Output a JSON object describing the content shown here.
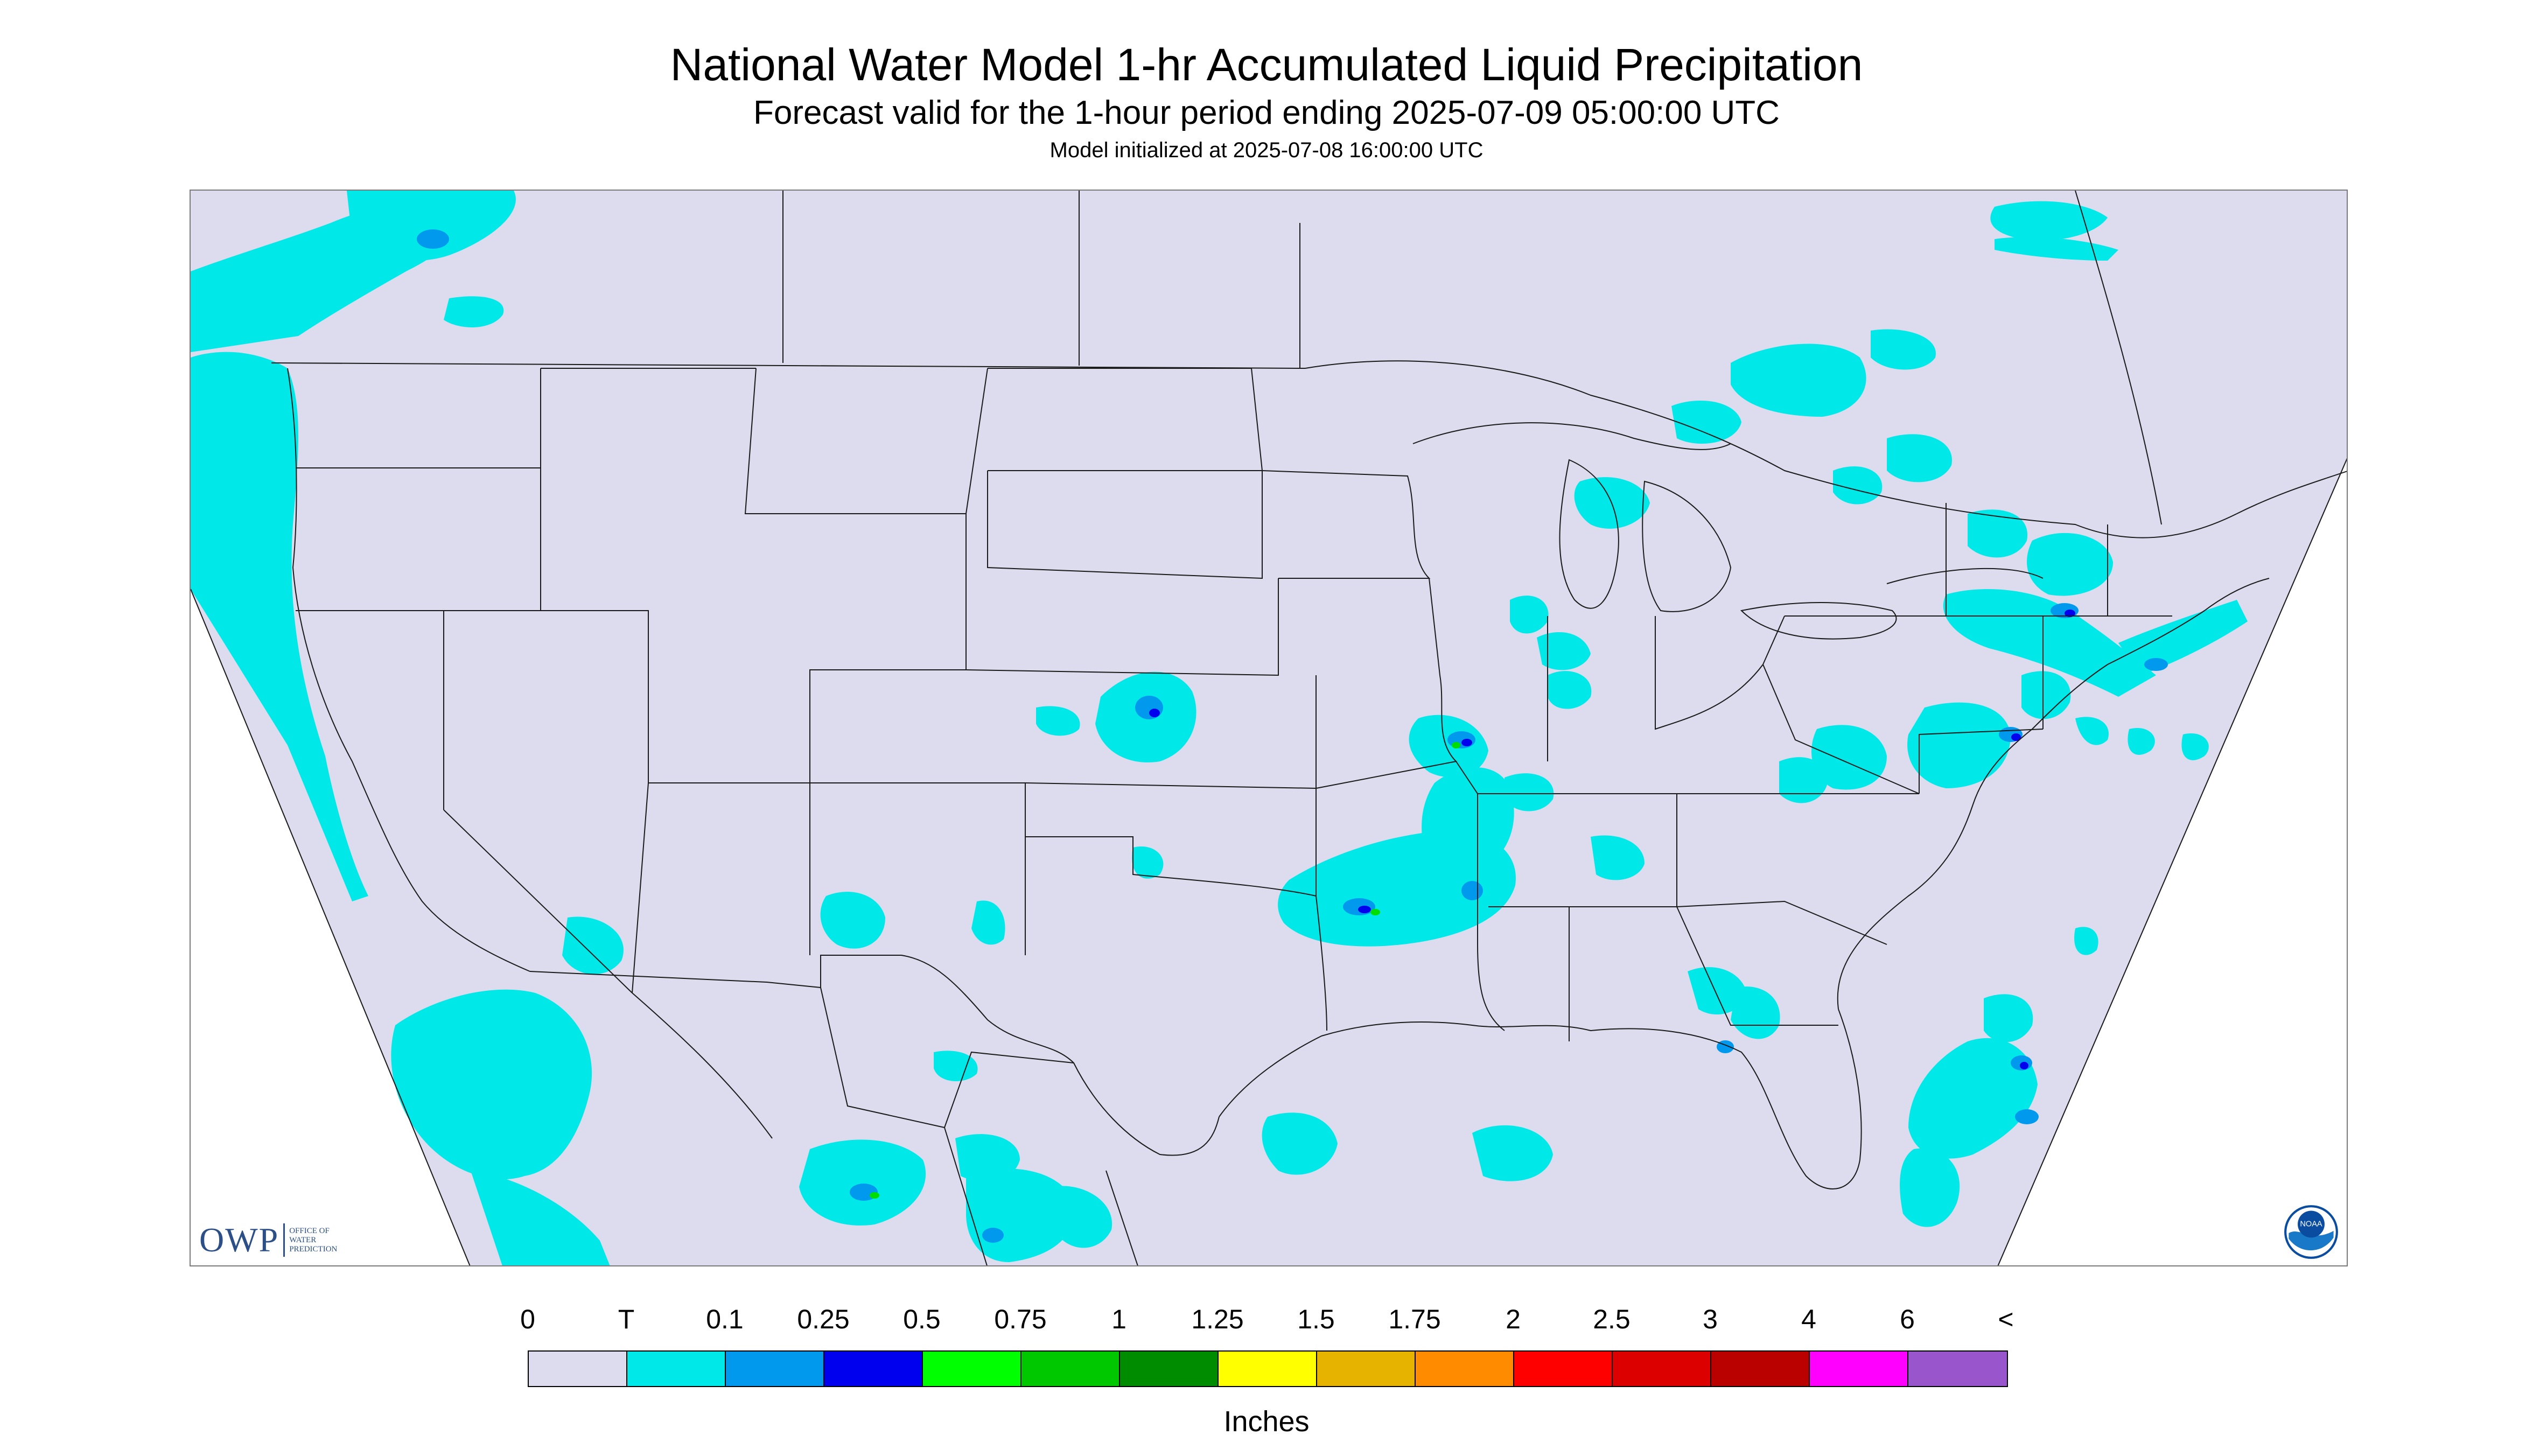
{
  "header": {
    "title": "National Water Model 1-hr Accumulated Liquid Precipitation",
    "subtitle": "Forecast valid for the 1-hour period ending 2025-07-09 05:00:00 UTC",
    "init": "Model initialized at 2025-07-08 16:00:00 UTC"
  },
  "map": {
    "background_color": "#dcdcee",
    "border_color": "#1a1a1a",
    "trace_color": "#00e8e8",
    "light_color": "#0099ee",
    "moderate_color": "#0000ee",
    "heavy_color": "#00dd00"
  },
  "logos": {
    "owp": {
      "letters": "OWP",
      "line1": "Office of",
      "line2": "Water",
      "line3": "Prediction"
    },
    "noaa": {
      "label": "NOAA"
    }
  },
  "legend": {
    "unit": "Inches",
    "labels": [
      "0",
      "T",
      "0.1",
      "0.25",
      "0.5",
      "0.75",
      "1",
      "1.25",
      "1.5",
      "1.75",
      "2",
      "2.5",
      "3",
      "4",
      "6",
      "<"
    ],
    "colors": [
      "#dcdcee",
      "#00e8e8",
      "#0099ee",
      "#0000ee",
      "#00ff00",
      "#00c800",
      "#008c00",
      "#ffff00",
      "#e6b400",
      "#ff8c00",
      "#ff0000",
      "#dd0000",
      "#bb0000",
      "#ff00ff",
      "#9955cc"
    ]
  }
}
